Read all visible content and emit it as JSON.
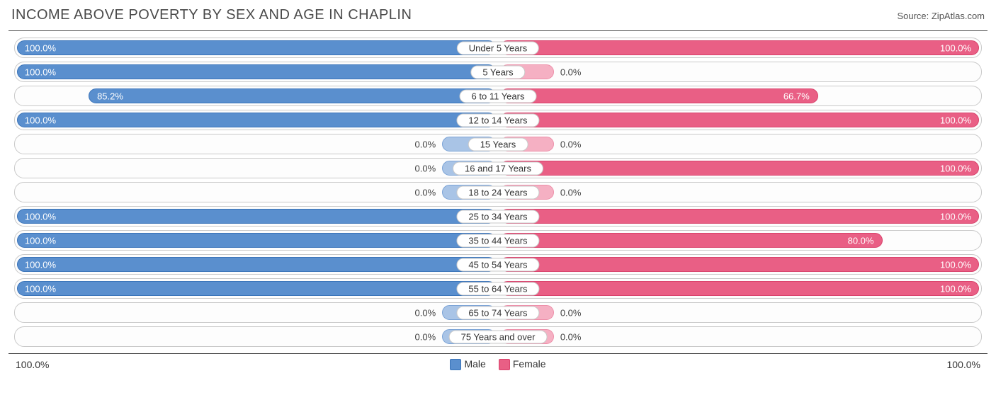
{
  "title": "INCOME ABOVE POVERTY BY SEX AND AGE IN CHAPLIN",
  "source": "Source: ZipAtlas.com",
  "axis_left": "100.0%",
  "axis_right": "100.0%",
  "legend": {
    "male": "Male",
    "female": "Female"
  },
  "colors": {
    "male_full_fill": "#5a8fce",
    "male_full_border": "#3973b9",
    "male_stub_fill": "#a9c4e6",
    "male_stub_border": "#7ba3d6",
    "female_full_fill": "#e95f85",
    "female_full_border": "#d9416b",
    "female_stub_fill": "#f5b0c3",
    "female_stub_border": "#ed8fa9",
    "row_border": "#c9c9c9",
    "text": "#333333",
    "title_color": "#4a4a4a"
  },
  "stub_pct": 12,
  "rows": [
    {
      "age": "Under 5 Years",
      "male": 100.0,
      "female": 100.0,
      "male_label": "100.0%",
      "female_label": "100.0%"
    },
    {
      "age": "5 Years",
      "male": 100.0,
      "female": 0.0,
      "male_label": "100.0%",
      "female_label": "0.0%"
    },
    {
      "age": "6 to 11 Years",
      "male": 85.2,
      "female": 66.7,
      "male_label": "85.2%",
      "female_label": "66.7%"
    },
    {
      "age": "12 to 14 Years",
      "male": 100.0,
      "female": 100.0,
      "male_label": "100.0%",
      "female_label": "100.0%"
    },
    {
      "age": "15 Years",
      "male": 0.0,
      "female": 0.0,
      "male_label": "0.0%",
      "female_label": "0.0%"
    },
    {
      "age": "16 and 17 Years",
      "male": 0.0,
      "female": 100.0,
      "male_label": "0.0%",
      "female_label": "100.0%"
    },
    {
      "age": "18 to 24 Years",
      "male": 0.0,
      "female": 0.0,
      "male_label": "0.0%",
      "female_label": "0.0%"
    },
    {
      "age": "25 to 34 Years",
      "male": 100.0,
      "female": 100.0,
      "male_label": "100.0%",
      "female_label": "100.0%"
    },
    {
      "age": "35 to 44 Years",
      "male": 100.0,
      "female": 80.0,
      "male_label": "100.0%",
      "female_label": "80.0%"
    },
    {
      "age": "45 to 54 Years",
      "male": 100.0,
      "female": 100.0,
      "male_label": "100.0%",
      "female_label": "100.0%"
    },
    {
      "age": "55 to 64 Years",
      "male": 100.0,
      "female": 100.0,
      "male_label": "100.0%",
      "female_label": "100.0%"
    },
    {
      "age": "65 to 74 Years",
      "male": 0.0,
      "female": 0.0,
      "male_label": "0.0%",
      "female_label": "0.0%"
    },
    {
      "age": "75 Years and over",
      "male": 0.0,
      "female": 0.0,
      "male_label": "0.0%",
      "female_label": "0.0%"
    }
  ]
}
